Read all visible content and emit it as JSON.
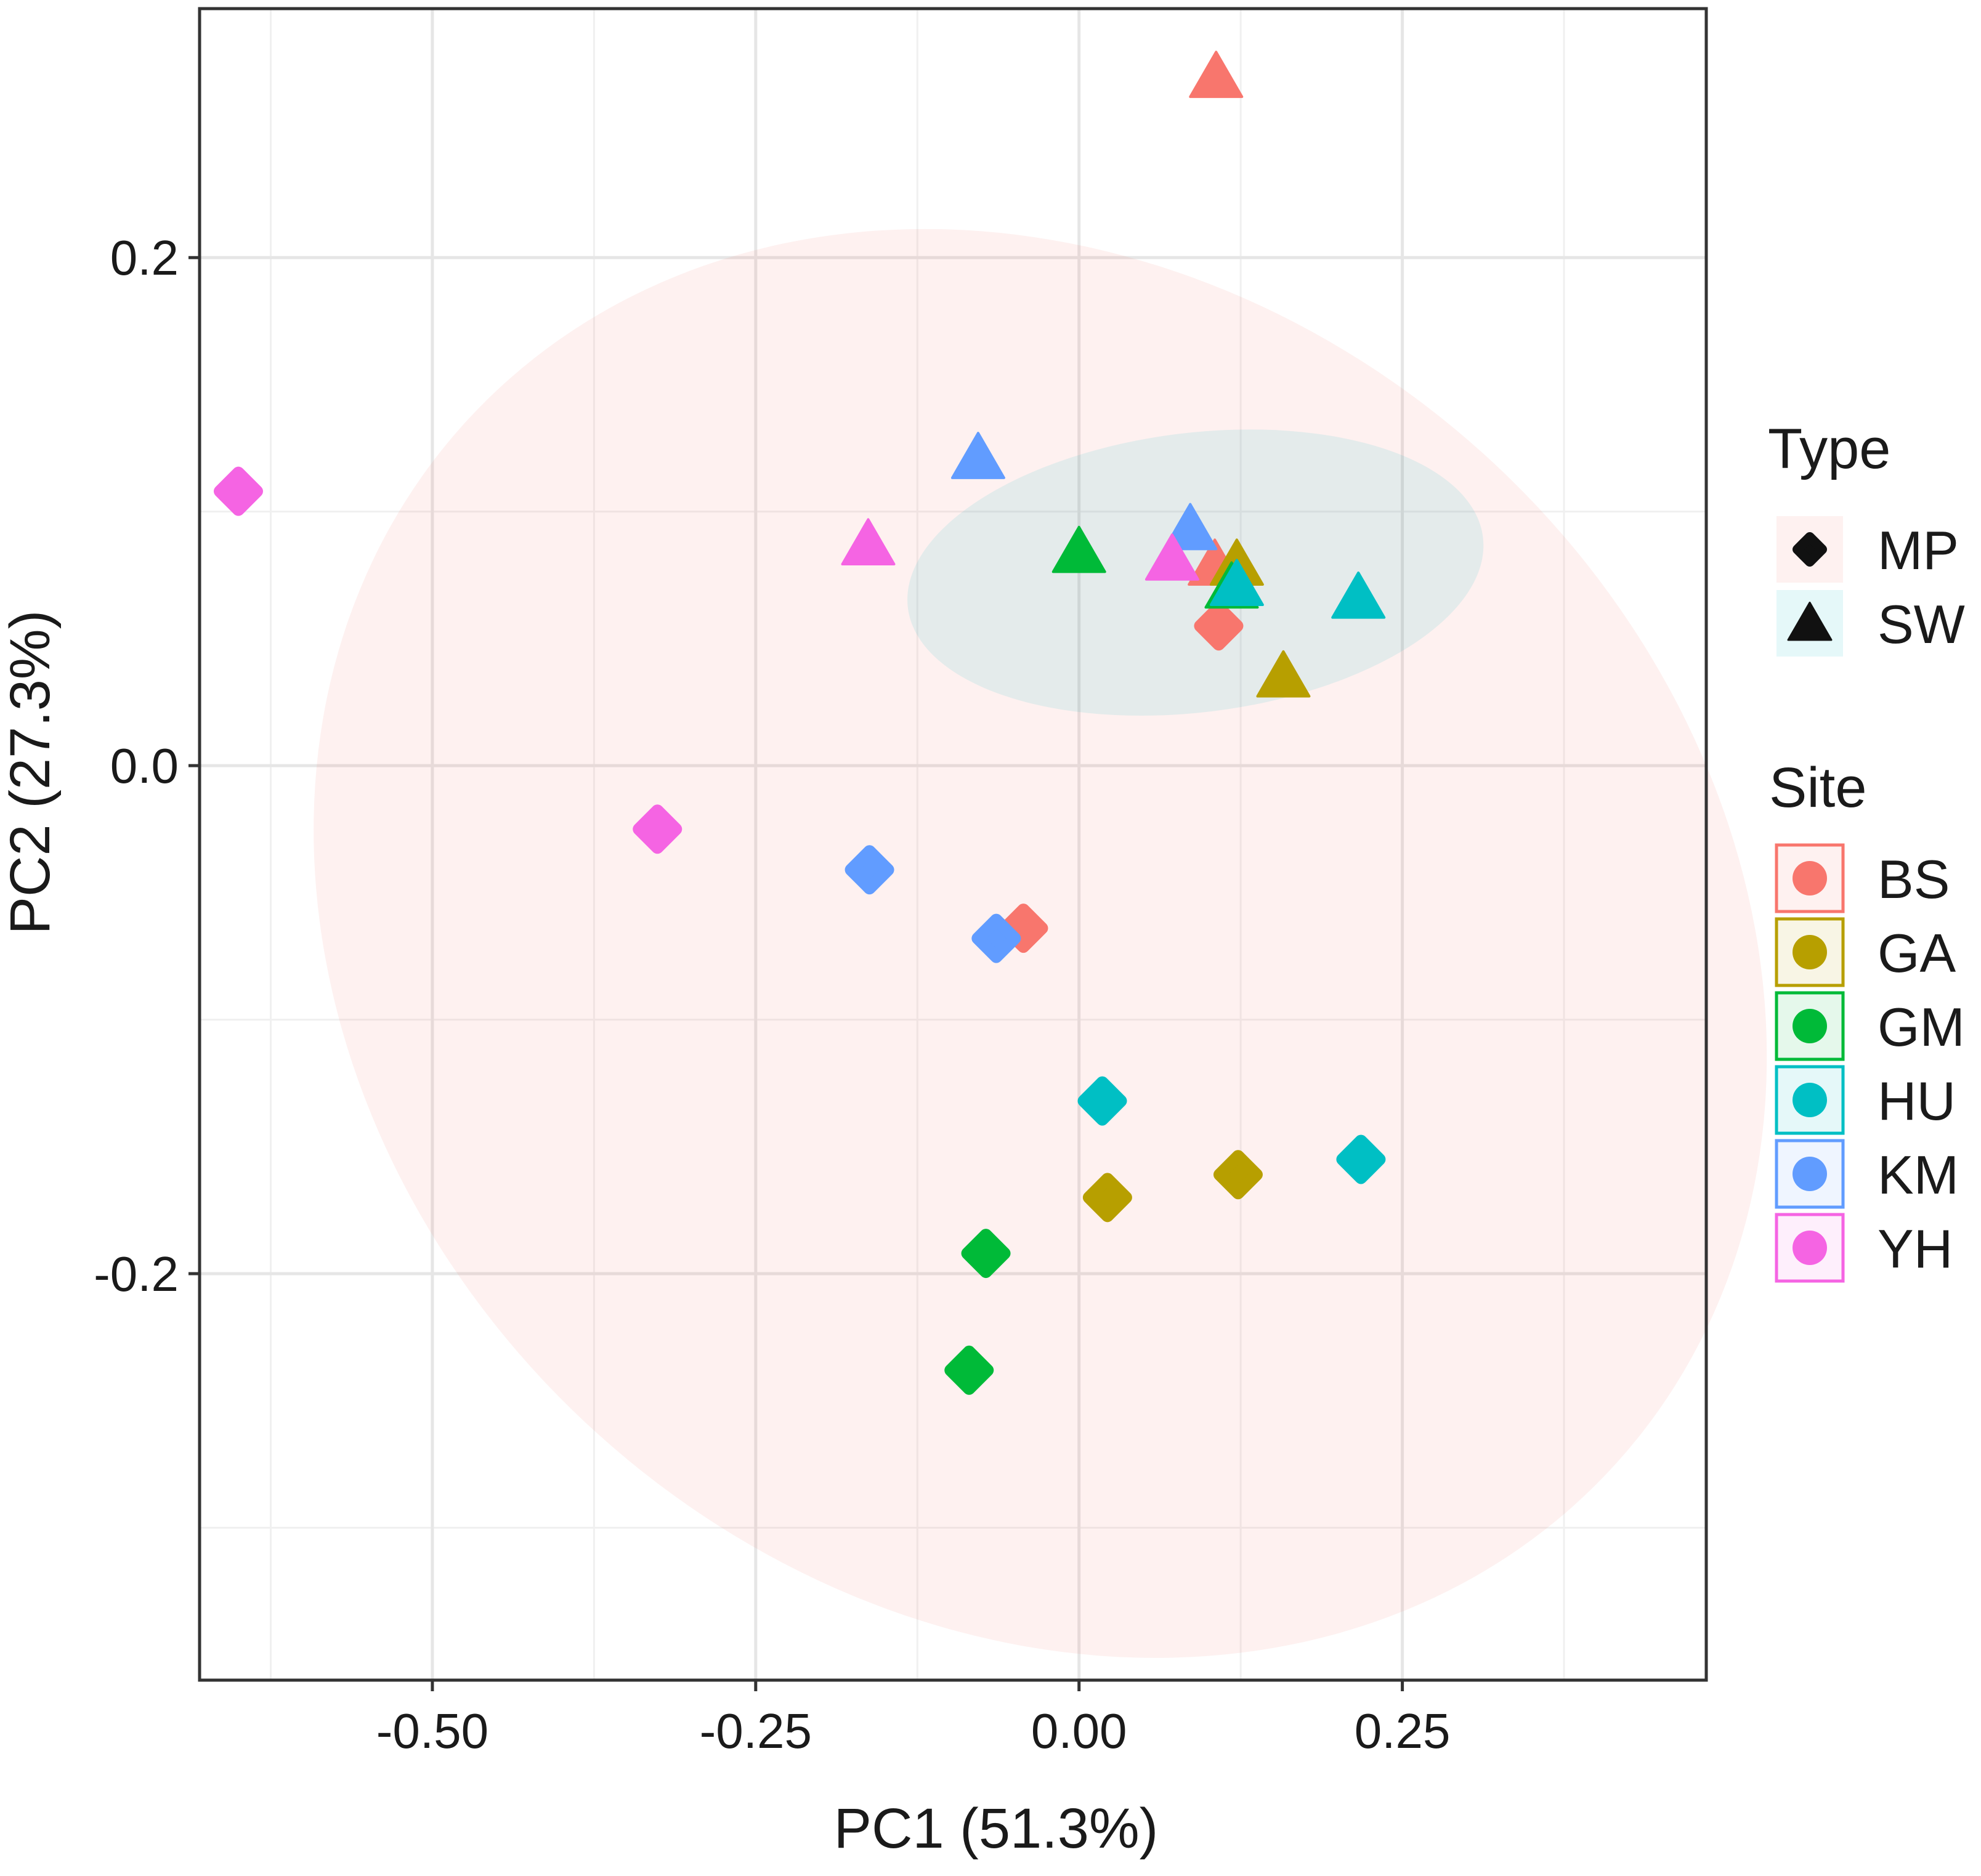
{
  "chart_data": {
    "type": "scatter",
    "xlabel": "PC1 (51.3%)",
    "ylabel": "PC2 (27.3%)",
    "xlim": [
      -0.68,
      0.485
    ],
    "ylim": [
      -0.36,
      0.298
    ],
    "x_ticks": [
      -0.5,
      -0.25,
      0.0,
      0.25
    ],
    "x_tick_labels": [
      "-0.50",
      "-0.25",
      "0.00",
      "0.25"
    ],
    "x_minor_ticks": [
      -0.625,
      -0.375,
      -0.125,
      0.125,
      0.375
    ],
    "y_ticks": [
      0.2,
      0.0,
      -0.2
    ],
    "y_tick_labels": [
      "0.2",
      "0.0",
      "-0.2"
    ],
    "y_minor_ticks": [
      0.1,
      -0.1,
      -0.3
    ],
    "grid": true,
    "ellipses": [
      {
        "group": "MP",
        "color": "#F8766D",
        "opacity": 0.1,
        "cx": -0.03,
        "cy": -0.07,
        "rx": 0.6,
        "ry": 0.26,
        "angle_deg": 42
      },
      {
        "group": "SW",
        "color": "#00BFC4",
        "opacity": 0.1,
        "cx": 0.09,
        "cy": 0.076,
        "rx": 0.224,
        "ry": 0.055,
        "angle_deg": -7
      }
    ],
    "series": [
      {
        "site": "BS",
        "color": "#F8766D",
        "points": [
          {
            "x": 0.106,
            "y": 0.27,
            "type": "SW"
          },
          {
            "x": 0.105,
            "y": 0.078,
            "type": "SW"
          },
          {
            "x": 0.108,
            "y": 0.055,
            "type": "MP"
          },
          {
            "x": -0.043,
            "y": -0.064,
            "type": "MP"
          }
        ]
      },
      {
        "site": "GA",
        "color": "#B79F00",
        "points": [
          {
            "x": 0.122,
            "y": 0.078,
            "type": "SW"
          },
          {
            "x": 0.158,
            "y": 0.034,
            "type": "SW"
          },
          {
            "x": 0.123,
            "y": -0.161,
            "type": "MP"
          },
          {
            "x": 0.022,
            "y": -0.17,
            "type": "MP"
          }
        ]
      },
      {
        "site": "GM",
        "color": "#00BA38",
        "points": [
          {
            "x": 0.0,
            "y": 0.083,
            "type": "SW"
          },
          {
            "x": 0.118,
            "y": 0.069,
            "type": "SW"
          },
          {
            "x": -0.072,
            "y": -0.192,
            "type": "MP"
          },
          {
            "x": -0.085,
            "y": -0.238,
            "type": "MP"
          }
        ]
      },
      {
        "site": "HU",
        "color": "#00BFC4",
        "points": [
          {
            "x": 0.122,
            "y": 0.07,
            "type": "SW"
          },
          {
            "x": 0.216,
            "y": 0.065,
            "type": "SW"
          },
          {
            "x": 0.018,
            "y": -0.132,
            "type": "MP"
          },
          {
            "x": 0.218,
            "y": -0.155,
            "type": "MP"
          }
        ]
      },
      {
        "site": "KM",
        "color": "#619CFF",
        "points": [
          {
            "x": -0.078,
            "y": 0.12,
            "type": "SW"
          },
          {
            "x": 0.086,
            "y": 0.092,
            "type": "SW"
          },
          {
            "x": -0.162,
            "y": -0.041,
            "type": "MP"
          },
          {
            "x": -0.064,
            "y": -0.068,
            "type": "MP"
          }
        ]
      },
      {
        "site": "YH",
        "color": "#F564E3",
        "points": [
          {
            "x": -0.163,
            "y": 0.086,
            "type": "SW"
          },
          {
            "x": 0.072,
            "y": 0.08,
            "type": "SW"
          },
          {
            "x": -0.65,
            "y": 0.108,
            "type": "MP"
          },
          {
            "x": -0.326,
            "y": -0.025,
            "type": "MP"
          }
        ]
      }
    ],
    "legend": {
      "position": "right",
      "type_title": "Type",
      "type_items": [
        {
          "label": "MP",
          "shape": "diamond",
          "fill": "#F8766D"
        },
        {
          "label": "SW",
          "shape": "triangle",
          "fill": "#00BFC4"
        }
      ],
      "site_title": "Site",
      "site_items": [
        {
          "label": "BS",
          "color": "#F8766D"
        },
        {
          "label": "GA",
          "color": "#B79F00"
        },
        {
          "label": "GM",
          "color": "#00BA38"
        },
        {
          "label": "HU",
          "color": "#00BFC4"
        },
        {
          "label": "KM",
          "color": "#619CFF"
        },
        {
          "label": "YH",
          "color": "#F564E3"
        }
      ]
    }
  }
}
